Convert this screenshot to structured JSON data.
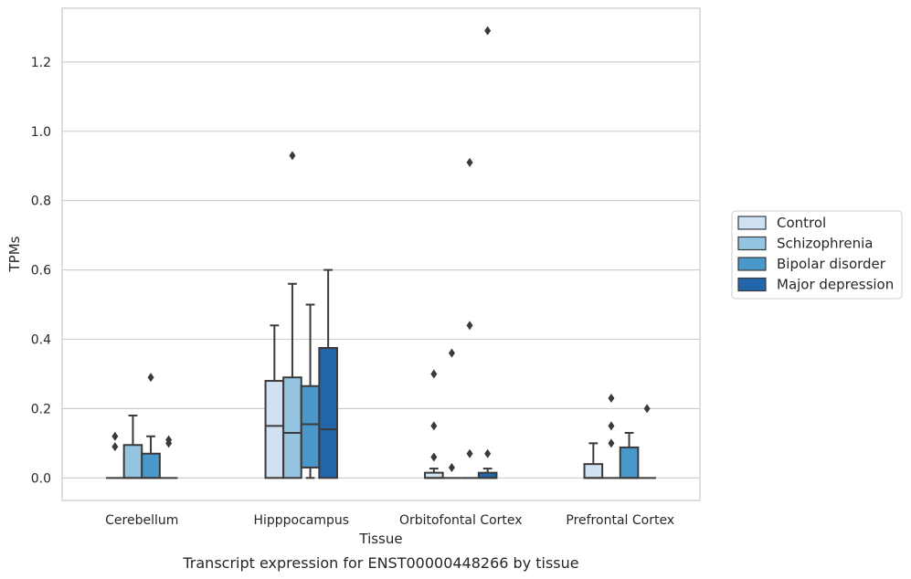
{
  "caption": "Transcript expression for ENST00000448266 by tissue",
  "chart_data": {
    "type": "box",
    "xlabel": "Tissue",
    "ylabel": "TPMs",
    "ylim": [
      -0.065,
      1.355
    ],
    "yticks": [
      0.0,
      0.2,
      0.4,
      0.6,
      0.8,
      1.0,
      1.2
    ],
    "ytick_labels": [
      "0.0",
      "0.2",
      "0.4",
      "0.6",
      "0.8",
      "1.0",
      "1.2"
    ],
    "grid": "horizontal",
    "legend_position": "right",
    "categories": [
      "Cerebellum",
      "Hipppocampus",
      "Orbitofontal Cortex",
      "Prefrontal Cortex"
    ],
    "series": [
      {
        "name": "Control",
        "color": "#d0e1f2",
        "boxes": [
          {
            "q1": 0,
            "median": 0,
            "q3": 0,
            "whisker_low": 0,
            "whisker_high": 0,
            "outliers": [
              0.12,
              0.09
            ]
          },
          {
            "q1": 0,
            "median": 0.15,
            "q3": 0.28,
            "whisker_low": 0,
            "whisker_high": 0.44,
            "outliers": []
          },
          {
            "q1": 0,
            "median": 0,
            "q3": 0.015,
            "whisker_low": 0,
            "whisker_high": 0.027,
            "outliers": [
              0.3,
              0.15,
              0.06
            ]
          },
          {
            "q1": 0,
            "median": 0,
            "q3": 0.04,
            "whisker_low": 0,
            "whisker_high": 0.1,
            "outliers": []
          }
        ]
      },
      {
        "name": "Schizophrenia",
        "color": "#94c4df",
        "boxes": [
          {
            "q1": 0,
            "median": 0,
            "q3": 0.095,
            "whisker_low": 0,
            "whisker_high": 0.18,
            "outliers": []
          },
          {
            "q1": 0,
            "median": 0.13,
            "q3": 0.29,
            "whisker_low": 0,
            "whisker_high": 0.56,
            "outliers": [
              0.93
            ]
          },
          {
            "q1": 0,
            "median": 0,
            "q3": 0,
            "whisker_low": 0,
            "whisker_high": 0,
            "outliers": [
              0.36,
              0.03
            ]
          },
          {
            "q1": 0,
            "median": 0,
            "q3": 0,
            "whisker_low": 0,
            "whisker_high": 0,
            "outliers": [
              0.23,
              0.15,
              0.1
            ]
          }
        ]
      },
      {
        "name": "Bipolar disorder",
        "color": "#4a98c9",
        "boxes": [
          {
            "q1": 0,
            "median": 0,
            "q3": 0.07,
            "whisker_low": 0,
            "whisker_high": 0.12,
            "outliers": [
              0.29
            ]
          },
          {
            "q1": 0.03,
            "median": 0.155,
            "q3": 0.265,
            "whisker_low": 0,
            "whisker_high": 0.5,
            "outliers": []
          },
          {
            "q1": 0,
            "median": 0,
            "q3": 0,
            "whisker_low": 0,
            "whisker_high": 0,
            "outliers": [
              0.91,
              0.44,
              0.07
            ]
          },
          {
            "q1": 0,
            "median": 0,
            "q3": 0.088,
            "whisker_low": 0,
            "whisker_high": 0.13,
            "outliers": []
          }
        ]
      },
      {
        "name": "Major depression",
        "color": "#2165ab",
        "boxes": [
          {
            "q1": 0,
            "median": 0,
            "q3": 0,
            "whisker_low": 0,
            "whisker_high": 0,
            "outliers": [
              0.11,
              0.1
            ]
          },
          {
            "q1": 0,
            "median": 0.14,
            "q3": 0.375,
            "whisker_low": 0,
            "whisker_high": 0.6,
            "outliers": []
          },
          {
            "q1": 0,
            "median": 0,
            "q3": 0.015,
            "whisker_low": 0,
            "whisker_high": 0.027,
            "outliers": [
              1.29,
              0.07
            ]
          },
          {
            "q1": 0,
            "median": 0,
            "q3": 0,
            "whisker_low": 0,
            "whisker_high": 0,
            "outliers": [
              0.2
            ]
          }
        ]
      }
    ]
  }
}
